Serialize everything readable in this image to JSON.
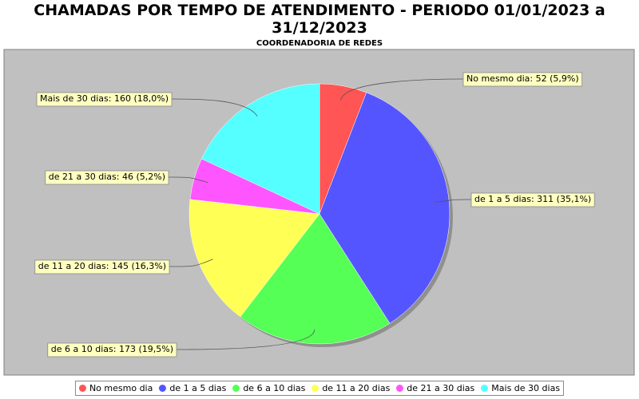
{
  "chart_data": {
    "type": "pie",
    "title": "CHAMADAS POR TEMPO DE ATENDIMENTO - PERIODO 01/01/2023 a 31/12/2023",
    "subtitle": "COORDENADORIA DE REDES",
    "categories": [
      "No mesmo dia",
      "de 1 a 5 dias",
      "de 6 a 10 dias",
      "de 11 a 20 dias",
      "de 21 a 30 dias",
      "Mais de 30 dias"
    ],
    "values": [
      52,
      311,
      173,
      145,
      46,
      160
    ],
    "value_labels": [
      "No mesmo dia: 52 (5,9%)",
      "de 1 a 5 dias: 311 (35,1%)",
      "de 6 a 10 dias: 173 (19,5%)",
      "de 11 a 20 dias: 145 (16,3%)",
      "de 21 a 30 dias: 46 (5,2%)",
      "Mais de 30 dias: 160 (18,0%)"
    ],
    "colors": [
      "#ff5555",
      "#5555ff",
      "#55ff55",
      "#ffff55",
      "#ff55ff",
      "#55ffff"
    ],
    "legend": "bottom"
  }
}
